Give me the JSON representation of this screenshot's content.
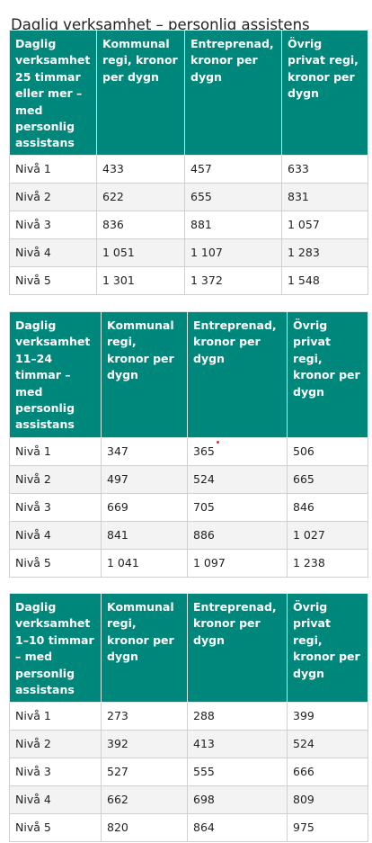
{
  "title": "Daglig verksamhet – personlig assistens",
  "tables": [
    {
      "headers": [
        "Daglig verksamhet 25 timmar eller mer – med personlig assistans",
        "Kommunal regi, kronor per dygn",
        "Entreprenad, kronor per dygn",
        "Övrig privat regi, kronor per dygn"
      ],
      "rows": [
        [
          "Nivå 1",
          "433",
          "457",
          "633"
        ],
        [
          "Nivå 2",
          "622",
          "655",
          "831"
        ],
        [
          "Nivå 3",
          "836",
          "881",
          "1 057"
        ],
        [
          "Nivå 4",
          "1 051",
          "1 107",
          "1 283"
        ],
        [
          "Nivå 5",
          "1 301",
          "1 372",
          "1 548"
        ]
      ]
    },
    {
      "headers": [
        "Daglig verksamhet 11–24 timmar – med personlig assistans",
        "Kommunal regi, kronor per dygn",
        "Entreprenad, kronor per dygn",
        "Övrig privat regi, kronor per dygn"
      ],
      "rows": [
        [
          "Nivå 1",
          "347",
          "365",
          "506"
        ],
        [
          "Nivå 2",
          "497",
          "524",
          "665"
        ],
        [
          "Nivå 3",
          "669",
          "705",
          "846"
        ],
        [
          "Nivå 4",
          "841",
          "886",
          "1 027"
        ],
        [
          "Nivå 5",
          "1 041",
          "1 097",
          "1 238"
        ]
      ]
    },
    {
      "headers": [
        "Daglig verksamhet 1–10 timmar – med personlig assistans",
        "Kommunal regi, kronor per dygn",
        "Entreprenad, kronor per dygn",
        "Övrig privat regi, kronor per dygn"
      ],
      "rows": [
        [
          "Nivå 1",
          "273",
          "288",
          "399"
        ],
        [
          "Nivå 2",
          "392",
          "413",
          "524"
        ],
        [
          "Nivå 3",
          "527",
          "555",
          "666"
        ],
        [
          "Nivå 4",
          "662",
          "698",
          "809"
        ],
        [
          "Nivå 5",
          "820",
          "864",
          "975"
        ]
      ]
    }
  ]
}
